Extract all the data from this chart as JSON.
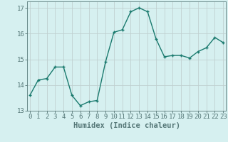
{
  "x": [
    0,
    1,
    2,
    3,
    4,
    5,
    6,
    7,
    8,
    9,
    10,
    11,
    12,
    13,
    14,
    15,
    16,
    17,
    18,
    19,
    20,
    21,
    22,
    23
  ],
  "y": [
    13.6,
    14.2,
    14.25,
    14.7,
    14.7,
    13.6,
    13.2,
    13.35,
    13.4,
    14.9,
    16.05,
    16.15,
    16.85,
    17.0,
    16.85,
    15.8,
    15.1,
    15.15,
    15.15,
    15.05,
    15.3,
    15.45,
    15.85,
    15.65
  ],
  "line_color": "#1a7a6e",
  "marker": "+",
  "marker_size": 3,
  "marker_linewidth": 1.0,
  "line_width": 1.0,
  "background_color": "#d6f0f0",
  "grid_color": "#c0d0d0",
  "xlabel": "Humidex (Indice chaleur)",
  "ylabel": "",
  "ylim": [
    13.0,
    17.25
  ],
  "yticks": [
    13,
    14,
    15,
    16,
    17
  ],
  "xticks": [
    0,
    1,
    2,
    3,
    4,
    5,
    6,
    7,
    8,
    9,
    10,
    11,
    12,
    13,
    14,
    15,
    16,
    17,
    18,
    19,
    20,
    21,
    22,
    23
  ],
  "xlim": [
    -0.3,
    23.3
  ],
  "spine_color": "#557777",
  "xlabel_fontsize": 7.5,
  "tick_fontsize": 6.5
}
